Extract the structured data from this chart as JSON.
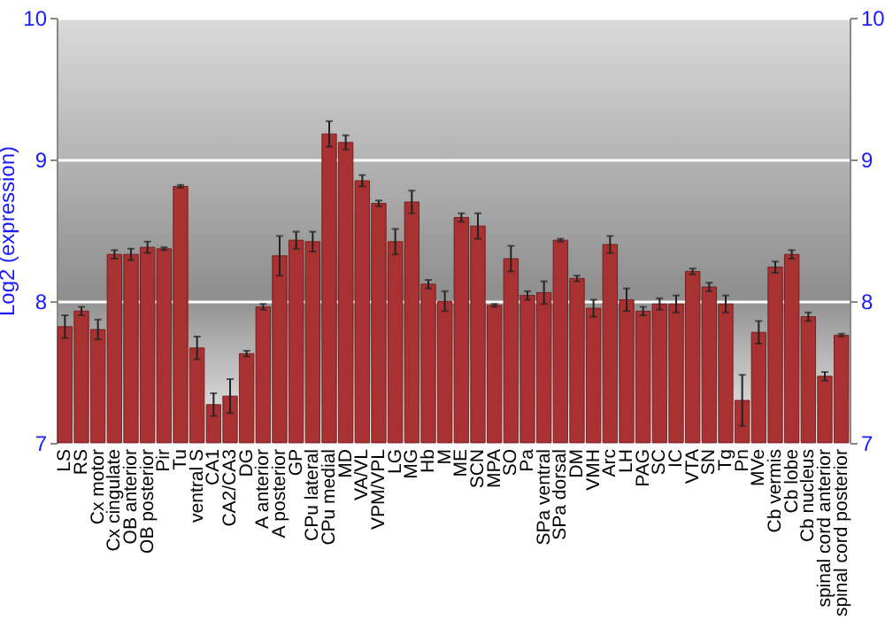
{
  "chart_data": {
    "type": "bar",
    "ylabel": "Log2 (expression)",
    "categories": [
      "LS",
      "RS",
      "Cx motor",
      "Cx cingulate",
      "OB anterior",
      "OB posterior",
      "Pir",
      "Tu",
      "ventral S",
      "CA1",
      "CA2/CA3",
      "DG",
      "A anterior",
      "A posterior",
      "GP",
      "CPu lateral",
      "CPu medial",
      "MD",
      "VA/VL",
      "VPM/VPL",
      "LG",
      "MG",
      "Hb",
      "M",
      "ME",
      "SCN",
      "MPA",
      "SO",
      "Pa",
      "SPa ventral",
      "SPa dorsal",
      "DM",
      "VMH",
      "Arc",
      "LH",
      "PAG",
      "SC",
      "IC",
      "VTA",
      "SN",
      "Tg",
      "Pn",
      "MVe",
      "Cb vermis",
      "Cb lobe",
      "Cb nucleus",
      "spinal cord anterior",
      "spinal cord posterior"
    ],
    "values": [
      7.82,
      7.93,
      7.8,
      8.33,
      8.33,
      8.38,
      8.37,
      8.81,
      7.67,
      7.27,
      7.33,
      7.63,
      7.96,
      8.32,
      8.43,
      8.42,
      9.18,
      9.12,
      8.85,
      8.69,
      8.42,
      8.7,
      8.12,
      8.0,
      8.59,
      8.53,
      7.97,
      8.3,
      8.04,
      8.06,
      8.43,
      8.16,
      7.95,
      8.4,
      8.01,
      7.93,
      7.98,
      7.98,
      8.21,
      8.1,
      7.98,
      7.3,
      7.78,
      8.24,
      8.33,
      7.89,
      7.47,
      7.76
    ],
    "errors": [
      0.08,
      0.03,
      0.07,
      0.03,
      0.04,
      0.04,
      0.01,
      0.01,
      0.08,
      0.08,
      0.12,
      0.02,
      0.02,
      0.14,
      0.06,
      0.07,
      0.09,
      0.05,
      0.04,
      0.02,
      0.09,
      0.08,
      0.03,
      0.07,
      0.03,
      0.09,
      0.01,
      0.09,
      0.03,
      0.08,
      0.01,
      0.02,
      0.06,
      0.06,
      0.08,
      0.03,
      0.04,
      0.06,
      0.02,
      0.03,
      0.06,
      0.18,
      0.08,
      0.04,
      0.03,
      0.03,
      0.03,
      0.01
    ],
    "color": "#a83232",
    "ylim": [
      7,
      10
    ],
    "yticks": [
      7,
      8,
      9,
      10
    ],
    "y2lim": [
      7,
      10
    ],
    "y2ticks": [
      7,
      8,
      9,
      10
    ],
    "grid": true
  }
}
